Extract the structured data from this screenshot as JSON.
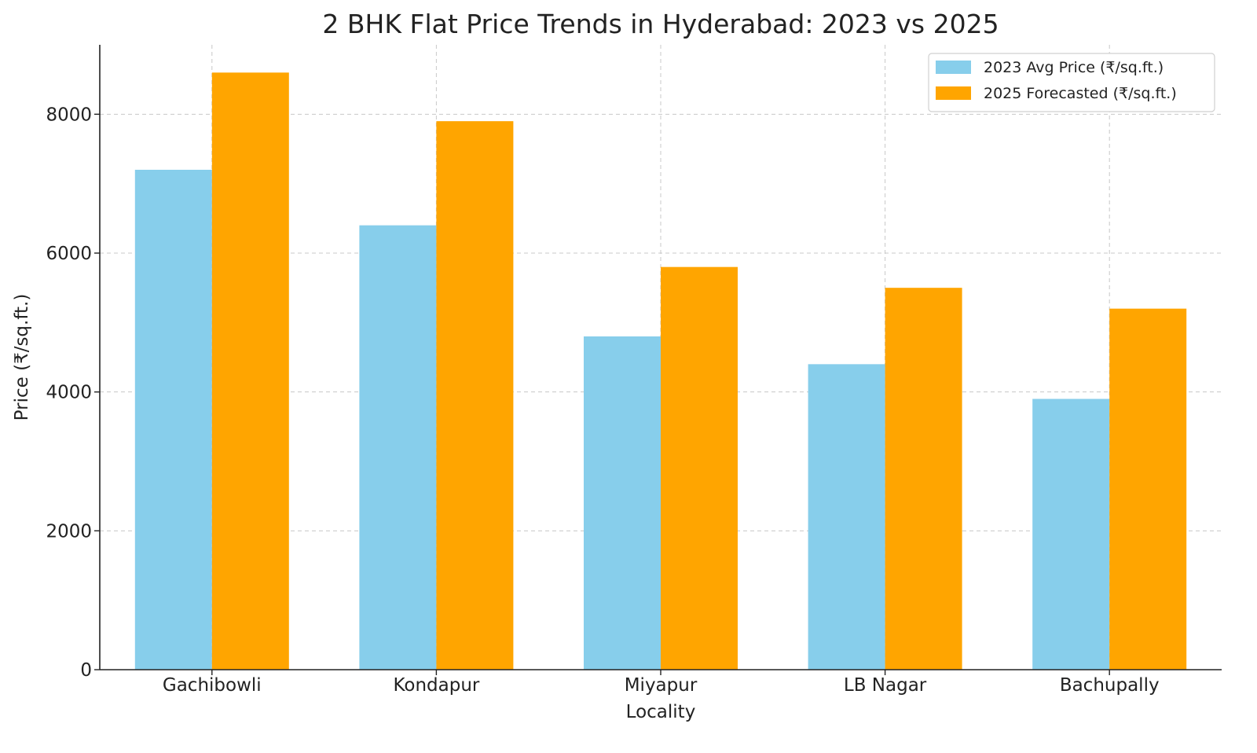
{
  "chart_data": {
    "type": "bar",
    "title": "2 BHK Flat Price Trends in Hyderabad: 2023 vs 2025",
    "xlabel": "Locality",
    "ylabel": "Price (₹/sq.ft.)",
    "categories": [
      "Gachibowli",
      "Kondapur",
      "Miyapur",
      "LB Nagar",
      "Bachupally"
    ],
    "series": [
      {
        "name": "2023 Avg Price (₹/sq.ft.)",
        "color": "#87CEEB",
        "values": [
          7200,
          6400,
          4800,
          4400,
          3900
        ]
      },
      {
        "name": "2025 Forecasted (₹/sq.ft.)",
        "color": "#FFA500",
        "values": [
          8600,
          7900,
          5800,
          5500,
          5200
        ]
      }
    ],
    "ylim": [
      0,
      9000
    ],
    "yticks": [
      0,
      2000,
      4000,
      6000,
      8000
    ],
    "grid": true,
    "legend_position": "top-right"
  }
}
